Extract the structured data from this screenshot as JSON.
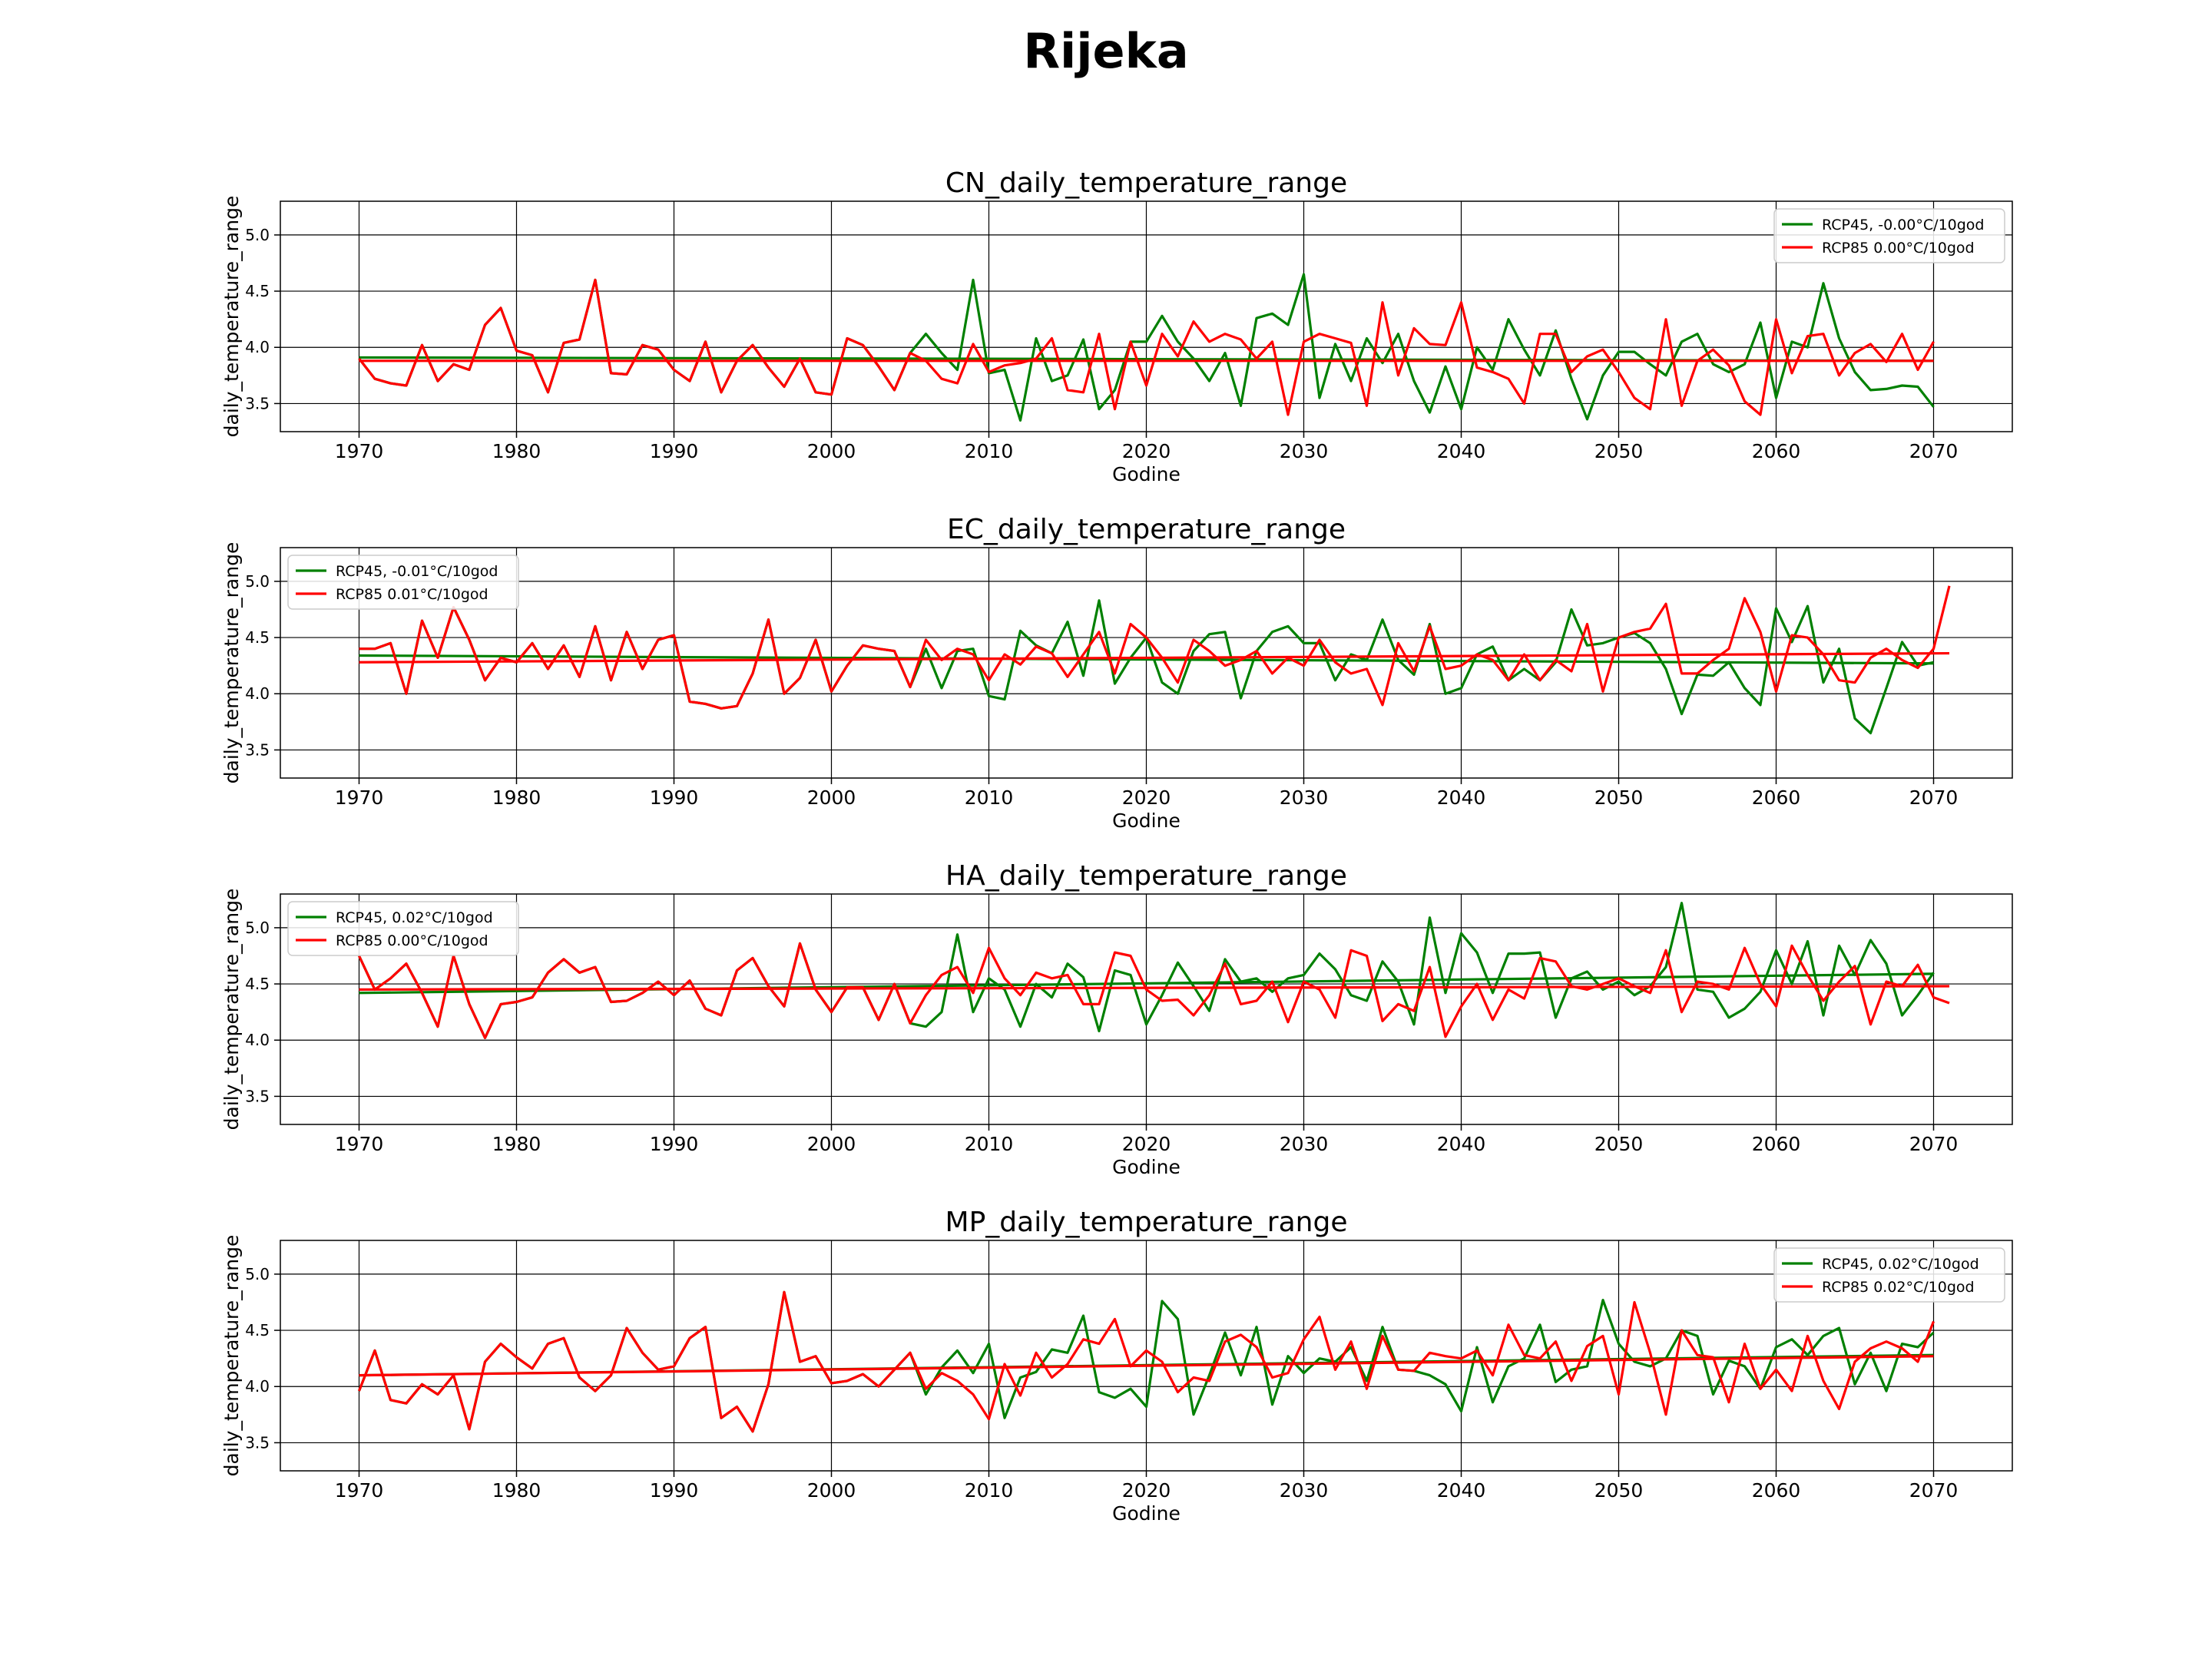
{
  "figure": {
    "title": "Rijeka"
  },
  "colors": {
    "rcp45": "#008000",
    "rcp85": "#ff0000",
    "grid": "#000000"
  },
  "chart_data": [
    {
      "type": "line",
      "title": "CN_daily_temperature_range",
      "xlabel": "Godine",
      "ylabel": "daily_temperature_range",
      "xlim": [
        1965,
        2075
      ],
      "ylim": [
        3.25,
        5.3
      ],
      "xticks": [
        1970,
        1980,
        1990,
        2000,
        2010,
        2020,
        2030,
        2040,
        2050,
        2060,
        2070
      ],
      "yticks": [
        3.5,
        4.0,
        4.5,
        5.0
      ],
      "grid": true,
      "legend_position": "top-right",
      "series": [
        {
          "name": "RCP45, -0.00°C/10god",
          "color": "#008000",
          "x_start": 1970,
          "values": [
            3.9,
            3.72,
            3.68,
            3.66,
            4.02,
            3.7,
            3.85,
            3.8,
            4.2,
            4.35,
            3.97,
            3.93,
            3.6,
            4.04,
            4.07,
            4.6,
            3.77,
            3.76,
            4.02,
            3.98,
            3.8,
            3.7,
            4.05,
            3.6,
            3.88,
            4.02,
            3.82,
            3.65,
            3.9,
            3.6,
            3.58,
            4.08,
            4.02,
            3.83,
            3.62,
            3.95,
            4.12,
            3.95,
            3.8,
            4.6,
            3.77,
            3.8,
            3.35,
            4.08,
            3.7,
            3.75,
            4.07,
            3.45,
            3.62,
            4.05,
            4.05,
            4.28,
            4.05,
            3.9,
            3.7,
            3.95,
            3.48,
            4.26,
            4.3,
            4.2,
            4.65,
            3.55,
            4.03,
            3.7,
            4.08,
            3.86,
            4.12,
            3.7,
            3.42,
            3.83,
            3.45,
            4.0,
            3.8,
            4.25,
            3.98,
            3.75,
            4.15,
            3.72,
            3.36,
            3.75,
            3.96,
            3.96,
            3.85,
            3.75,
            4.05,
            4.12,
            3.85,
            3.78,
            3.85,
            4.22,
            3.55,
            4.05,
            4.0,
            4.57,
            4.08,
            3.78,
            3.62,
            3.63,
            3.66,
            3.65,
            3.47
          ],
          "trend": [
            3.91,
            3.88
          ]
        },
        {
          "name": "RCP85 0.00°C/10god",
          "color": "#ff0000",
          "x_start": 1970,
          "values": [
            3.9,
            3.72,
            3.68,
            3.66,
            4.02,
            3.7,
            3.85,
            3.8,
            4.2,
            4.35,
            3.97,
            3.93,
            3.6,
            4.04,
            4.07,
            4.6,
            3.77,
            3.76,
            4.02,
            3.98,
            3.8,
            3.7,
            4.05,
            3.6,
            3.88,
            4.02,
            3.82,
            3.65,
            3.9,
            3.6,
            3.58,
            4.08,
            4.02,
            3.83,
            3.62,
            3.95,
            3.88,
            3.72,
            3.68,
            4.03,
            3.78,
            3.84,
            3.86,
            3.9,
            4.08,
            3.62,
            3.6,
            4.12,
            3.45,
            4.05,
            3.66,
            4.12,
            3.92,
            4.23,
            4.05,
            4.12,
            4.07,
            3.9,
            4.05,
            3.4,
            4.05,
            4.12,
            4.08,
            4.04,
            3.48,
            4.4,
            3.75,
            4.17,
            4.03,
            4.02,
            4.4,
            3.82,
            3.78,
            3.72,
            3.5,
            4.12,
            4.12,
            3.78,
            3.92,
            3.98,
            3.78,
            3.55,
            3.45,
            4.25,
            3.48,
            3.88,
            3.98,
            3.84,
            3.52,
            3.4,
            4.25,
            3.77,
            4.1,
            4.12,
            3.75,
            3.95,
            4.03,
            3.87,
            4.12,
            3.8,
            4.05
          ],
          "trend": [
            3.88,
            3.88
          ]
        }
      ]
    },
    {
      "type": "line",
      "title": "EC_daily_temperature_range",
      "xlabel": "Godine",
      "ylabel": "daily_temperature_range",
      "xlim": [
        1965,
        2075
      ],
      "ylim": [
        3.25,
        5.3
      ],
      "xticks": [
        1970,
        1980,
        1990,
        2000,
        2010,
        2020,
        2030,
        2040,
        2050,
        2060,
        2070
      ],
      "yticks": [
        3.5,
        4.0,
        4.5,
        5.0
      ],
      "grid": true,
      "legend_position": "top-left",
      "series": [
        {
          "name": "RCP45, -0.01°C/10god",
          "color": "#008000",
          "x_start": 1970,
          "values": [
            4.4,
            4.4,
            4.45,
            4.0,
            4.65,
            4.32,
            4.77,
            4.48,
            4.12,
            4.32,
            4.28,
            4.45,
            4.22,
            4.43,
            4.15,
            4.6,
            4.12,
            4.55,
            4.22,
            4.48,
            4.52,
            3.93,
            3.91,
            3.87,
            3.89,
            4.18,
            4.66,
            4.0,
            4.14,
            4.48,
            4.02,
            4.25,
            4.43,
            4.4,
            4.38,
            4.06,
            4.4,
            4.05,
            4.38,
            4.4,
            3.98,
            3.95,
            4.56,
            4.43,
            4.36,
            4.64,
            4.16,
            4.83,
            4.09,
            4.32,
            4.5,
            4.1,
            4.0,
            4.38,
            4.53,
            4.55,
            3.96,
            4.38,
            4.55,
            4.6,
            4.45,
            4.45,
            4.12,
            4.35,
            4.3,
            4.66,
            4.3,
            4.17,
            4.62,
            4.0,
            4.05,
            4.35,
            4.42,
            4.12,
            4.22,
            4.12,
            4.28,
            4.75,
            4.43,
            4.45,
            4.5,
            4.54,
            4.45,
            4.22,
            3.82,
            4.17,
            4.16,
            4.28,
            4.05,
            3.9,
            4.76,
            4.46,
            4.78,
            4.1,
            4.4,
            3.78,
            3.65,
            4.05,
            4.46,
            4.25,
            4.28
          ],
          "trend": [
            4.34,
            4.27
          ]
        },
        {
          "name": "RCP85 0.01°C/10god",
          "color": "#ff0000",
          "x_start": 1970,
          "values": [
            4.4,
            4.4,
            4.45,
            4.0,
            4.65,
            4.32,
            4.77,
            4.48,
            4.12,
            4.32,
            4.28,
            4.45,
            4.22,
            4.43,
            4.15,
            4.6,
            4.12,
            4.55,
            4.22,
            4.48,
            4.52,
            3.93,
            3.91,
            3.87,
            3.89,
            4.18,
            4.66,
            4.0,
            4.14,
            4.48,
            4.02,
            4.25,
            4.43,
            4.4,
            4.38,
            4.06,
            4.48,
            4.3,
            4.4,
            4.35,
            4.12,
            4.35,
            4.26,
            4.42,
            4.36,
            4.15,
            4.35,
            4.55,
            4.18,
            4.62,
            4.5,
            4.32,
            4.1,
            4.48,
            4.38,
            4.25,
            4.3,
            4.38,
            4.18,
            4.32,
            4.25,
            4.48,
            4.28,
            4.18,
            4.22,
            3.9,
            4.45,
            4.2,
            4.6,
            4.22,
            4.25,
            4.35,
            4.3,
            4.12,
            4.35,
            4.12,
            4.3,
            4.2,
            4.62,
            4.02,
            4.5,
            4.55,
            4.58,
            4.8,
            4.18,
            4.18,
            4.3,
            4.4,
            4.85,
            4.55,
            4.02,
            4.52,
            4.5,
            4.35,
            4.12,
            4.1,
            4.32,
            4.4,
            4.3,
            4.23,
            4.4,
            4.96
          ],
          "trend": [
            4.28,
            4.36
          ]
        }
      ]
    },
    {
      "type": "line",
      "title": "HA_daily_temperature_range",
      "xlabel": "Godine",
      "ylabel": "daily_temperature_range",
      "xlim": [
        1965,
        2075
      ],
      "ylim": [
        3.25,
        5.3
      ],
      "xticks": [
        1970,
        1980,
        1990,
        2000,
        2010,
        2020,
        2030,
        2040,
        2050,
        2060,
        2070
      ],
      "yticks": [
        3.5,
        4.0,
        4.5,
        5.0
      ],
      "grid": true,
      "legend_position": "top-left",
      "series": [
        {
          "name": "RCP45, 0.02°C/10god",
          "color": "#008000",
          "x_start": 1970,
          "values": [
            4.75,
            4.45,
            4.55,
            4.68,
            4.42,
            4.12,
            4.75,
            4.32,
            4.02,
            4.32,
            4.34,
            4.38,
            4.6,
            4.72,
            4.6,
            4.65,
            4.34,
            4.35,
            4.42,
            4.52,
            4.4,
            4.53,
            4.28,
            4.22,
            4.62,
            4.73,
            4.48,
            4.3,
            4.86,
            4.45,
            4.25,
            4.47,
            4.47,
            4.18,
            4.5,
            4.15,
            4.12,
            4.25,
            4.94,
            4.25,
            4.55,
            4.45,
            4.12,
            4.5,
            4.38,
            4.68,
            4.56,
            4.08,
            4.62,
            4.58,
            4.14,
            4.4,
            4.69,
            4.48,
            4.26,
            4.72,
            4.52,
            4.55,
            4.43,
            4.55,
            4.58,
            4.77,
            4.63,
            4.4,
            4.35,
            4.7,
            4.52,
            4.14,
            5.09,
            4.42,
            4.95,
            4.78,
            4.42,
            4.77,
            4.77,
            4.78,
            4.2,
            4.55,
            4.61,
            4.45,
            4.52,
            4.4,
            4.48,
            4.65,
            5.22,
            4.45,
            4.43,
            4.2,
            4.28,
            4.43,
            4.8,
            4.5,
            4.88,
            4.22,
            4.84,
            4.58,
            4.89,
            4.68,
            4.22,
            4.4,
            4.6
          ],
          "trend": [
            4.42,
            4.59
          ]
        },
        {
          "name": "RCP85 0.00°C/10god",
          "color": "#ff0000",
          "x_start": 1970,
          "values": [
            4.75,
            4.45,
            4.55,
            4.68,
            4.42,
            4.12,
            4.75,
            4.32,
            4.02,
            4.32,
            4.34,
            4.38,
            4.6,
            4.72,
            4.6,
            4.65,
            4.34,
            4.35,
            4.42,
            4.52,
            4.4,
            4.53,
            4.28,
            4.22,
            4.62,
            4.73,
            4.48,
            4.3,
            4.86,
            4.45,
            4.25,
            4.47,
            4.47,
            4.18,
            4.5,
            4.15,
            4.4,
            4.58,
            4.65,
            4.42,
            4.82,
            4.55,
            4.4,
            4.6,
            4.55,
            4.58,
            4.32,
            4.32,
            4.78,
            4.75,
            4.45,
            4.35,
            4.36,
            4.22,
            4.4,
            4.68,
            4.32,
            4.35,
            4.52,
            4.16,
            4.52,
            4.45,
            4.2,
            4.8,
            4.75,
            4.17,
            4.32,
            4.26,
            4.65,
            4.03,
            4.3,
            4.5,
            4.18,
            4.45,
            4.37,
            4.73,
            4.7,
            4.48,
            4.45,
            4.5,
            4.55,
            4.48,
            4.42,
            4.8,
            4.25,
            4.52,
            4.5,
            4.45,
            4.82,
            4.5,
            4.3,
            4.84,
            4.58,
            4.35,
            4.52,
            4.66,
            4.14,
            4.52,
            4.48,
            4.67,
            4.38,
            4.33
          ],
          "trend": [
            4.45,
            4.48
          ]
        }
      ]
    },
    {
      "type": "line",
      "title": "MP_daily_temperature_range",
      "xlabel": "Godine",
      "ylabel": "daily_temperature_range",
      "xlim": [
        1965,
        2075
      ],
      "ylim": [
        3.25,
        5.3
      ],
      "xticks": [
        1970,
        1980,
        1990,
        2000,
        2010,
        2020,
        2030,
        2040,
        2050,
        2060,
        2070
      ],
      "yticks": [
        3.5,
        4.0,
        4.5,
        5.0
      ],
      "grid": true,
      "legend_position": "top-right",
      "series": [
        {
          "name": "RCP45, 0.02°C/10god",
          "color": "#008000",
          "x_start": 1970,
          "values": [
            3.96,
            4.32,
            3.88,
            3.85,
            4.02,
            3.93,
            4.1,
            3.62,
            4.22,
            4.38,
            4.26,
            4.16,
            4.38,
            4.43,
            4.08,
            3.96,
            4.1,
            4.52,
            4.3,
            4.15,
            4.18,
            4.43,
            4.53,
            3.72,
            3.82,
            3.6,
            4.02,
            4.84,
            4.22,
            4.27,
            4.03,
            4.05,
            4.11,
            4.0,
            4.15,
            4.3,
            3.93,
            4.17,
            4.32,
            4.12,
            4.38,
            3.72,
            4.08,
            4.13,
            4.33,
            4.3,
            4.63,
            3.95,
            3.9,
            3.98,
            3.82,
            4.76,
            4.6,
            3.75,
            4.1,
            4.48,
            4.1,
            4.53,
            3.84,
            4.27,
            4.12,
            4.25,
            4.22,
            4.35,
            4.05,
            4.53,
            4.15,
            4.14,
            4.1,
            4.02,
            3.78,
            4.35,
            3.86,
            4.18,
            4.25,
            4.55,
            4.04,
            4.15,
            4.18,
            4.77,
            4.38,
            4.22,
            4.18,
            4.25,
            4.5,
            4.45,
            3.93,
            4.23,
            4.18,
            3.98,
            4.35,
            4.42,
            4.28,
            4.45,
            4.52,
            4.02,
            4.3,
            3.96,
            4.38,
            4.35,
            4.48
          ],
          "trend": [
            4.1,
            4.28
          ]
        },
        {
          "name": "RCP85 0.02°C/10god",
          "color": "#ff0000",
          "x_start": 1970,
          "values": [
            3.96,
            4.32,
            3.88,
            3.85,
            4.02,
            3.93,
            4.1,
            3.62,
            4.22,
            4.38,
            4.26,
            4.16,
            4.38,
            4.43,
            4.08,
            3.96,
            4.1,
            4.52,
            4.3,
            4.15,
            4.18,
            4.43,
            4.53,
            3.72,
            3.82,
            3.6,
            4.02,
            4.84,
            4.22,
            4.27,
            4.03,
            4.05,
            4.11,
            4.0,
            4.15,
            4.3,
            3.98,
            4.12,
            4.05,
            3.93,
            3.71,
            4.2,
            3.92,
            4.3,
            4.08,
            4.2,
            4.42,
            4.38,
            4.6,
            4.18,
            4.32,
            4.22,
            3.95,
            4.08,
            4.05,
            4.4,
            4.46,
            4.35,
            4.08,
            4.12,
            4.42,
            4.62,
            4.15,
            4.4,
            3.98,
            4.45,
            4.15,
            4.14,
            4.3,
            4.27,
            4.25,
            4.32,
            4.1,
            4.55,
            4.28,
            4.25,
            4.4,
            4.05,
            4.36,
            4.45,
            3.93,
            4.75,
            4.3,
            3.75,
            4.5,
            4.28,
            4.26,
            3.86,
            4.38,
            3.98,
            4.15,
            3.96,
            4.45,
            4.05,
            3.8,
            4.22,
            4.34,
            4.4,
            4.34,
            4.22,
            4.58
          ],
          "trend": [
            4.1,
            4.27
          ]
        }
      ]
    }
  ]
}
